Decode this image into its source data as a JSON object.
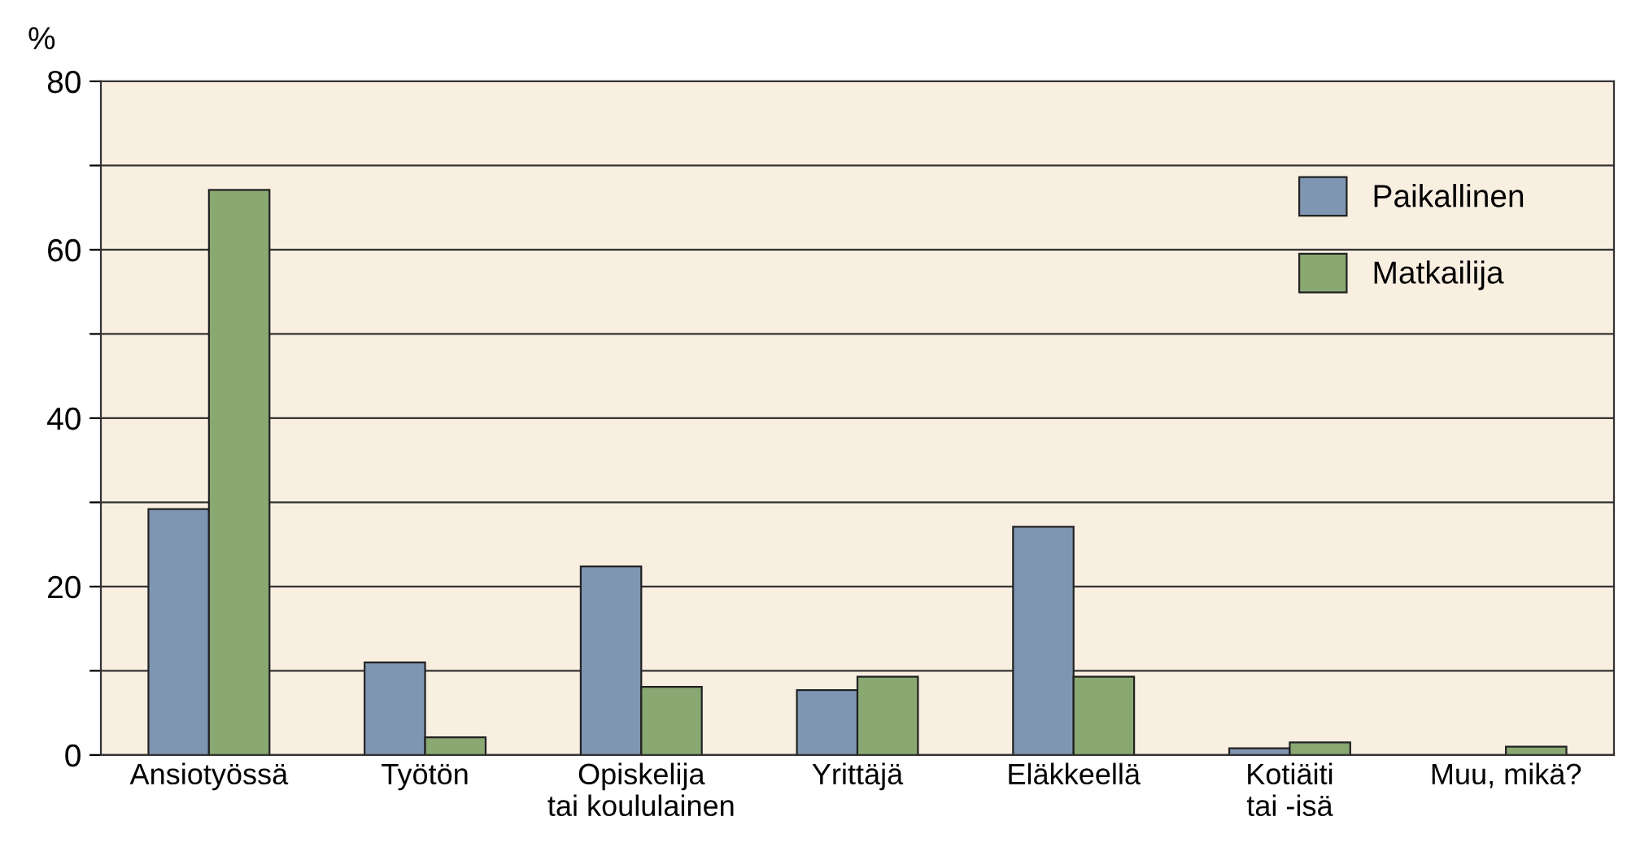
{
  "chart_data": {
    "type": "bar",
    "ylabel": "%",
    "categories": [
      "Ansiotyössä",
      "Työtön",
      "Opiskelija\ntai koululainen",
      "Yrittäjä",
      "Eläkkeellä",
      "Kotiäiti\ntai -isä",
      "Muu, mikä?"
    ],
    "series": [
      {
        "name": "Paikallinen",
        "color": "#7f96b2",
        "values": [
          29.2,
          11.0,
          22.4,
          7.7,
          27.1,
          0.8,
          null
        ]
      },
      {
        "name": "Matkailija",
        "color": "#89a872",
        "values": [
          67.1,
          2.1,
          8.1,
          9.3,
          9.3,
          1.5,
          1.0
        ]
      }
    ],
    "ylim": [
      0,
      80
    ],
    "yticks": [
      0,
      {
        "value": 10,
        "label": null
      },
      20,
      {
        "value": 30,
        "label": null
      },
      40,
      {
        "value": 50,
        "label": null
      },
      60,
      {
        "value": 70,
        "label": null
      },
      80
    ],
    "grid": "y",
    "legend": "top right"
  }
}
